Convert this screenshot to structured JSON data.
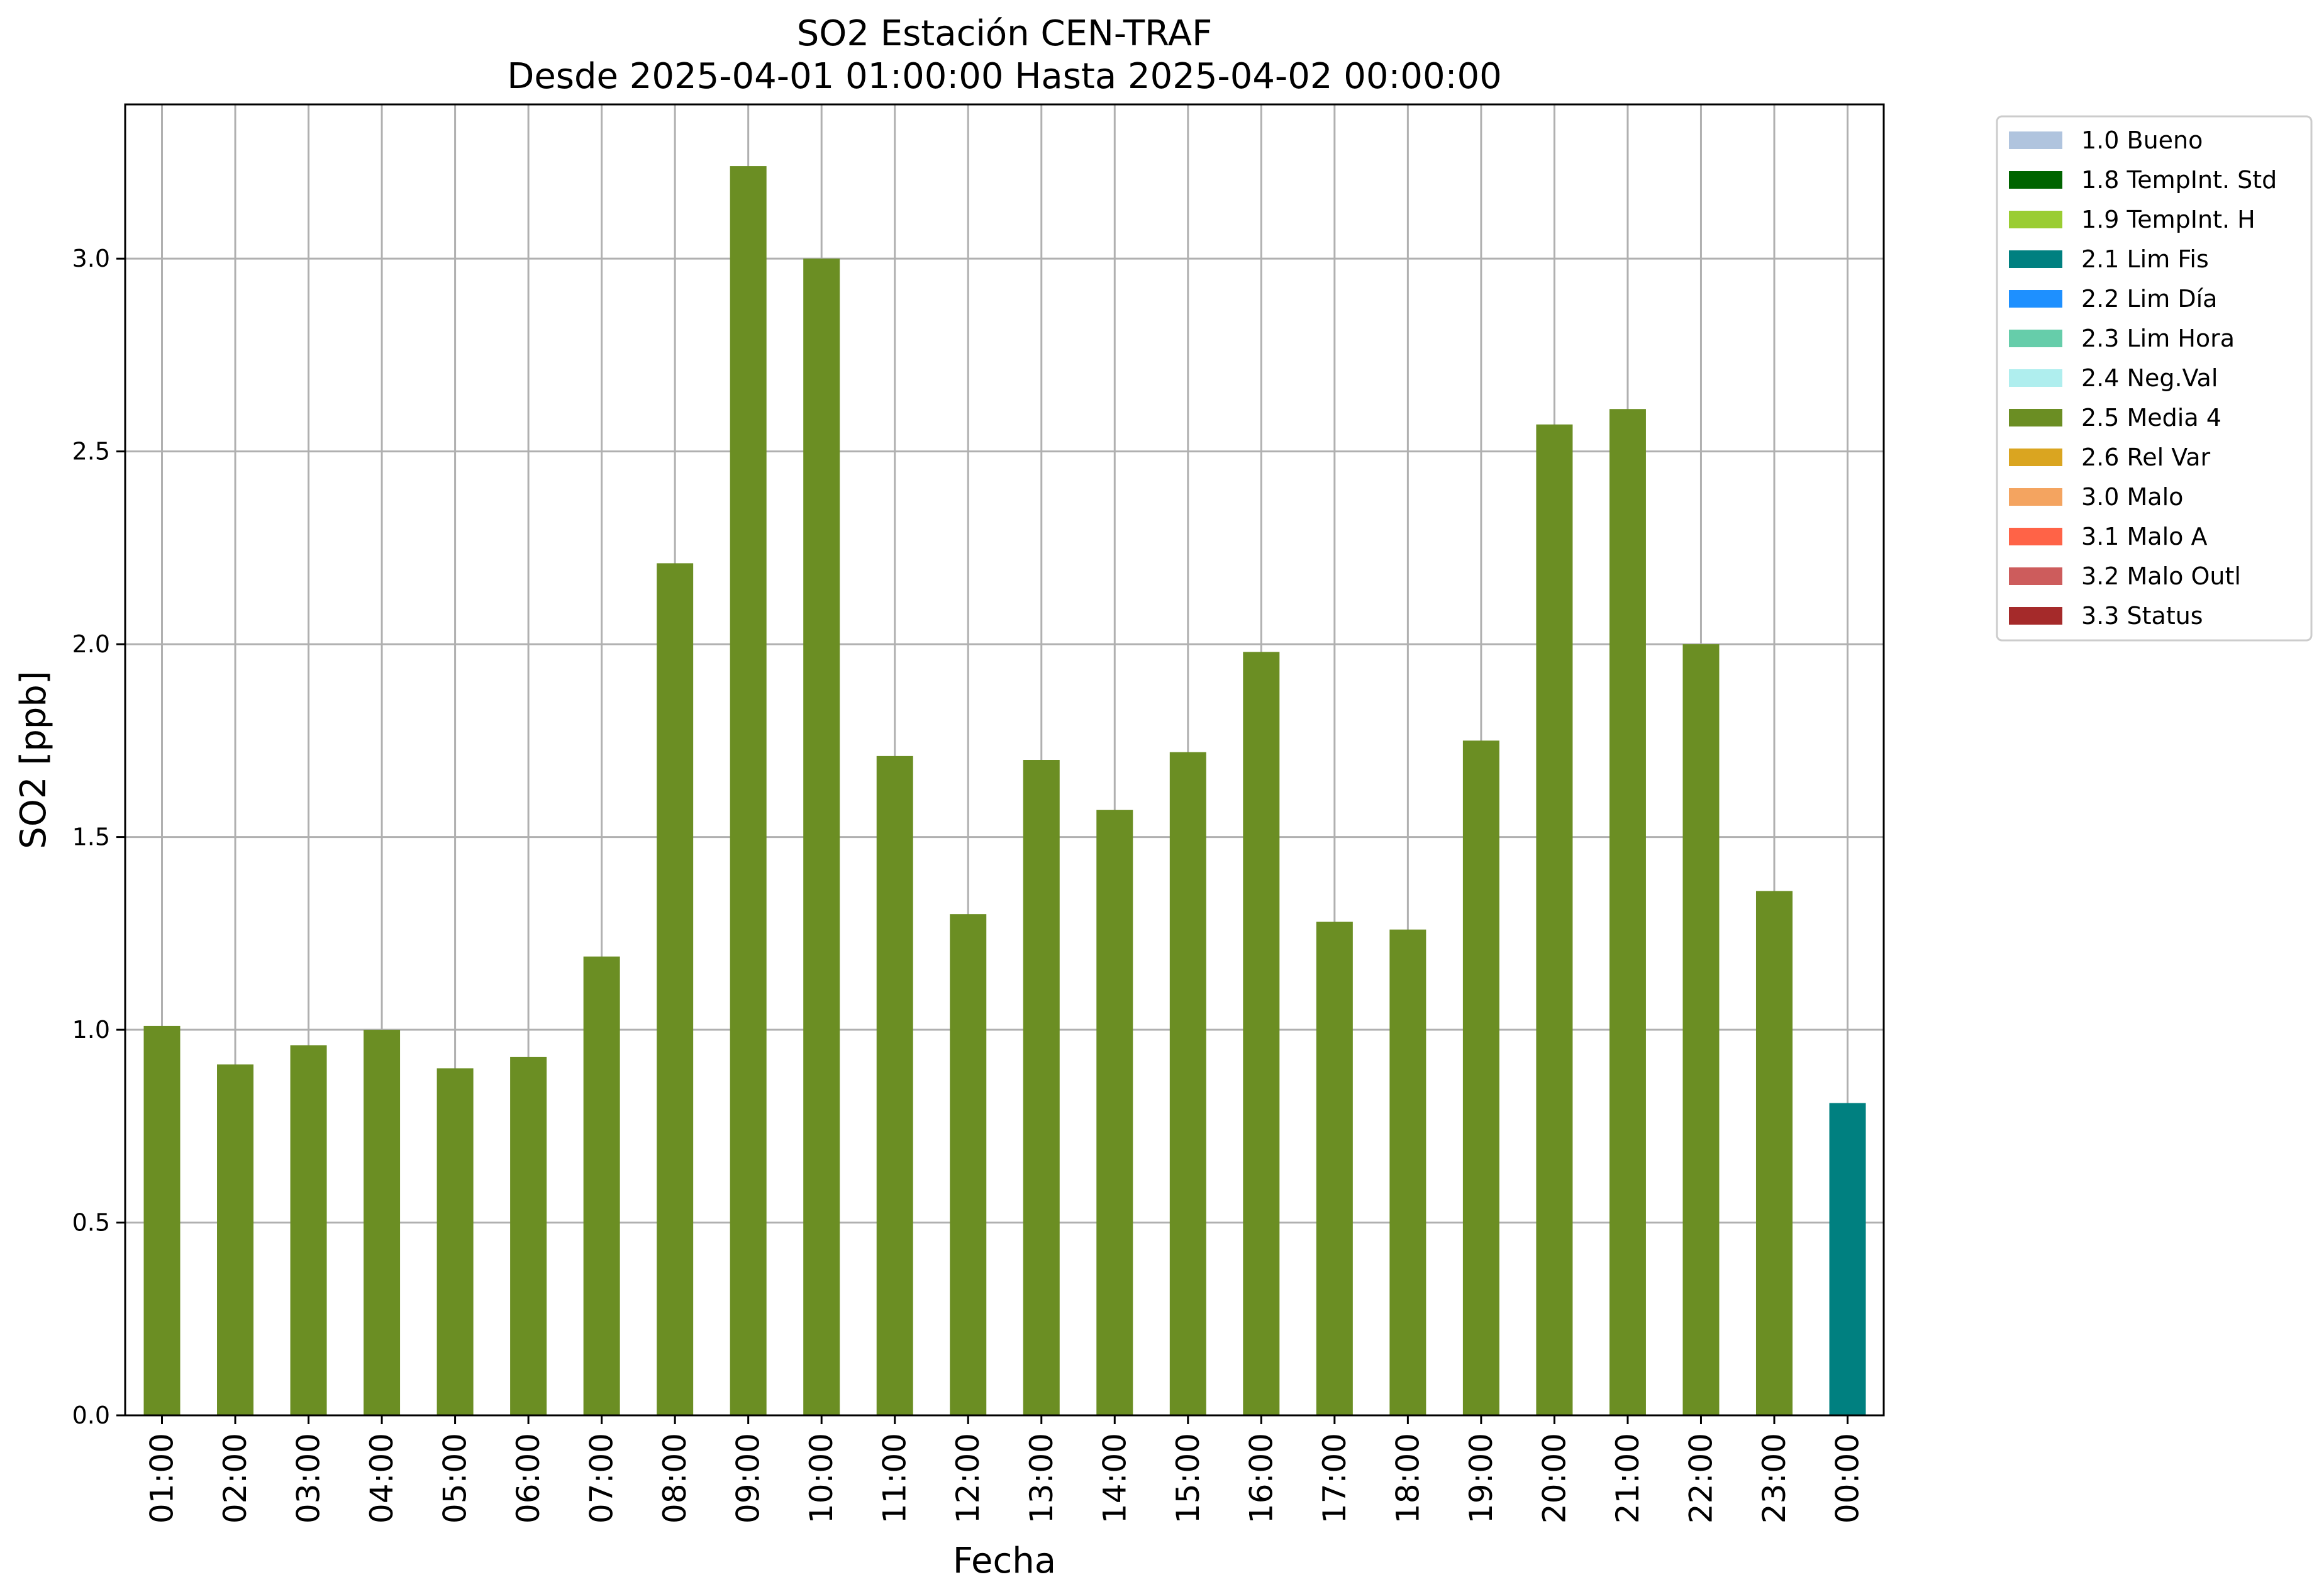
{
  "chart_data": {
    "type": "bar",
    "title": "SO2 Estación CEN-TRAF",
    "subtitle": "Desde 2025-04-01 01:00:00 Hasta 2025-04-02 00:00:00",
    "xlabel": "Fecha",
    "ylabel": "SO2 [ppb]",
    "ylim": [
      0,
      3.4
    ],
    "yticks": [
      "0.0",
      "0.5",
      "1.0",
      "1.5",
      "2.0",
      "2.5",
      "3.0"
    ],
    "grid": true,
    "legend_position": "outside-top-right",
    "categories": [
      "01:00",
      "02:00",
      "03:00",
      "04:00",
      "05:00",
      "06:00",
      "07:00",
      "08:00",
      "09:00",
      "10:00",
      "11:00",
      "12:00",
      "13:00",
      "14:00",
      "15:00",
      "16:00",
      "17:00",
      "18:00",
      "19:00",
      "20:00",
      "21:00",
      "22:00",
      "23:00",
      "00:00"
    ],
    "values": [
      1.01,
      0.91,
      0.96,
      1.0,
      0.9,
      0.93,
      1.19,
      2.21,
      3.24,
      3.0,
      1.71,
      1.3,
      1.7,
      1.57,
      1.72,
      1.98,
      1.28,
      1.26,
      1.75,
      2.57,
      2.61,
      2.0,
      1.36,
      0.81
    ],
    "bar_flags": [
      "2.5 Media 4",
      "2.5 Media 4",
      "2.5 Media 4",
      "2.5 Media 4",
      "2.5 Media 4",
      "2.5 Media 4",
      "2.5 Media 4",
      "2.5 Media 4",
      "2.5 Media 4",
      "2.5 Media 4",
      "2.5 Media 4",
      "2.5 Media 4",
      "2.5 Media 4",
      "2.5 Media 4",
      "2.5 Media 4",
      "2.5 Media 4",
      "2.5 Media 4",
      "2.5 Media 4",
      "2.5 Media 4",
      "2.5 Media 4",
      "2.5 Media 4",
      "2.5 Media 4",
      "2.5 Media 4",
      "2.1 Lim Fis"
    ],
    "legend": [
      {
        "label": "1.0 Bueno",
        "color": "#b0c4de"
      },
      {
        "label": "1.8 TempInt. Std",
        "color": "#006400"
      },
      {
        "label": "1.9 TempInt. H",
        "color": "#9acd32"
      },
      {
        "label": "2.1 Lim Fis",
        "color": "#008080"
      },
      {
        "label": "2.2 Lim Día",
        "color": "#1e90ff"
      },
      {
        "label": "2.3 Lim Hora",
        "color": "#66cdaa"
      },
      {
        "label": "2.4 Neg.Val",
        "color": "#afeeee"
      },
      {
        "label": "2.5 Media 4",
        "color": "#6b8e23"
      },
      {
        "label": "2.6 Rel Var",
        "color": "#daa520"
      },
      {
        "label": "3.0 Malo",
        "color": "#f4a460"
      },
      {
        "label": "3.1 Malo A",
        "color": "#ff6347"
      },
      {
        "label": "3.2 Malo Outl",
        "color": "#cd5c5c"
      },
      {
        "label": "3.3 Status",
        "color": "#a52a2a"
      }
    ]
  }
}
